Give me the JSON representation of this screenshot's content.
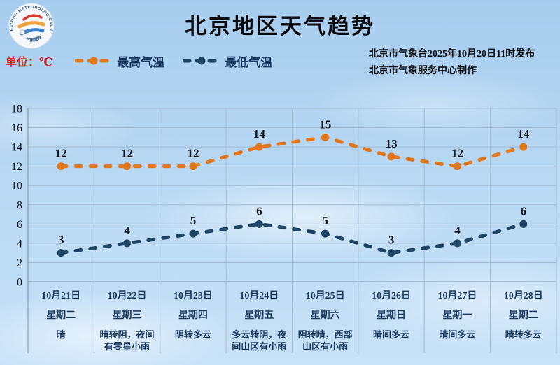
{
  "header": {
    "title": "北京地区天气趋势",
    "unit_label": "单位：℃",
    "issue_line1": "北京市气象台2025年10月20日11时发布",
    "issue_line2": "北京市气象服务中心制作",
    "logo": {
      "arc_text": "BEIJING METEOROLOGICAL SERVICE",
      "bottom_text": "气象服务"
    }
  },
  "legend": [
    {
      "label": "最高气温",
      "color": "#E2761B"
    },
    {
      "label": "最低气温",
      "color": "#1E4564"
    }
  ],
  "colors": {
    "grid": "#A4BCD1",
    "axis": "#7F93A6",
    "high_series": "#E2761B",
    "low_series": "#1E4564",
    "unit_text": "#D22A20",
    "legend_text": "#17365D",
    "day_text": "#1C3A5E"
  },
  "chart_data": {
    "type": "line",
    "title": "北京地区天气趋势",
    "ylabel": "℃",
    "ylim": [
      0,
      18
    ],
    "yticks": [
      0,
      2,
      4,
      6,
      8,
      10,
      12,
      14,
      16,
      18
    ],
    "grid": true,
    "line_style": "dashed",
    "legend_position": "top-left",
    "categories": [
      "10月21日",
      "10月22日",
      "10月23日",
      "10月24日",
      "10月25日",
      "10月26日",
      "10月27日",
      "10月28日"
    ],
    "series": [
      {
        "name": "最高气温",
        "color": "#E2761B",
        "values": [
          12,
          12,
          12,
          14,
          15,
          13,
          12,
          14
        ]
      },
      {
        "name": "最低气温",
        "color": "#1E4564",
        "values": [
          3,
          4,
          5,
          6,
          5,
          3,
          4,
          6
        ]
      }
    ],
    "days": [
      {
        "date": "10月21日",
        "weekday": "星期二",
        "weather": "晴"
      },
      {
        "date": "10月22日",
        "weekday": "星期三",
        "weather": "晴转阴，夜间有零星小雨"
      },
      {
        "date": "10月23日",
        "weekday": "星期四",
        "weather": "阴转多云"
      },
      {
        "date": "10月24日",
        "weekday": "星期五",
        "weather": "多云转阴，夜间山区有小雨"
      },
      {
        "date": "10月25日",
        "weekday": "星期六",
        "weather": "阴转晴，西部山区有小雨"
      },
      {
        "date": "10月26日",
        "weekday": "星期日",
        "weather": "晴间多云"
      },
      {
        "date": "10月27日",
        "weekday": "星期一",
        "weather": "晴间多云"
      },
      {
        "date": "10月28日",
        "weekday": "星期二",
        "weather": "晴转多云"
      }
    ]
  }
}
